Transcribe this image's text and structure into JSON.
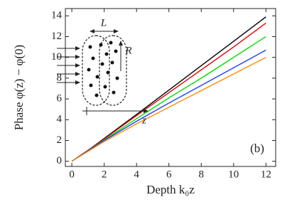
{
  "chart_data": {
    "type": "line",
    "x_label": "Depth k₀z",
    "y_label": "Phase φ(z) − φ(0)",
    "annotation": "(b)",
    "inset_labels": {
      "length": "L",
      "radius": "R",
      "axis": "z"
    },
    "x": [
      0,
      1,
      2,
      4,
      6,
      8,
      10,
      12
    ],
    "series": [
      {
        "color": "#000000",
        "values": [
          0,
          1.05,
          2.2,
          4.5,
          6.85,
          9.2,
          11.55,
          13.9
        ]
      },
      {
        "color": "#e00000",
        "values": [
          0,
          1.05,
          2.15,
          4.4,
          6.6,
          8.8,
          11.0,
          13.3
        ]
      },
      {
        "color": "#00e000",
        "values": [
          0,
          1.0,
          2.05,
          4.1,
          6.1,
          8.0,
          10.0,
          12.0
        ]
      },
      {
        "color": "#2040ff",
        "values": [
          0,
          1.0,
          2.0,
          3.85,
          5.6,
          7.3,
          9.0,
          10.7
        ]
      },
      {
        "color": "#ff8c00",
        "values": [
          0,
          0.95,
          1.9,
          3.6,
          5.2,
          6.8,
          8.4,
          10.0
        ]
      }
    ],
    "xlim": [
      -0.4,
      12.6
    ],
    "ylim": [
      -0.5,
      14.7
    ],
    "xticks": [
      0,
      2,
      4,
      6,
      8,
      10,
      12
    ],
    "yticks": [
      0,
      2,
      4,
      6,
      8,
      10,
      12,
      14
    ]
  }
}
